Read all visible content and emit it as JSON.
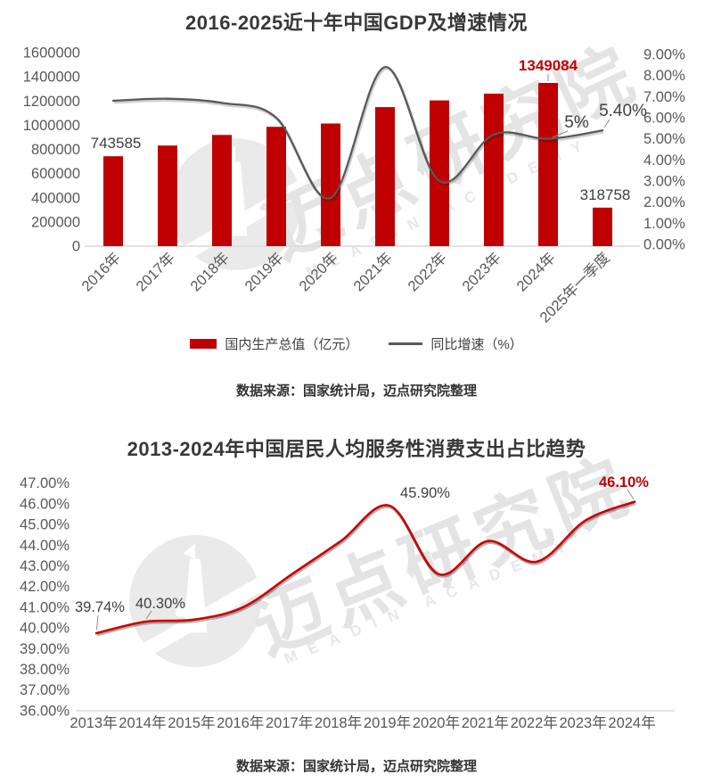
{
  "watermark": {
    "brand": "迈点研究院",
    "subtitle": "MEADIN ACADEMY"
  },
  "colors": {
    "bar_red": "#c00000",
    "growth_line_gray": "#595959",
    "trend_line_red": "#cc0000",
    "emphasis_red": "#c00000",
    "axis_text": "#595959",
    "axis_line": "#d9d9d9",
    "title_text": "#383838"
  },
  "chart_data": [
    {
      "type": "bar+line",
      "title": "2016-2025近十年中国GDP及增速情况",
      "categories": [
        "2016年",
        "2017年",
        "2018年",
        "2019年",
        "2020年",
        "2021年",
        "2022年",
        "2023年",
        "2024年",
        "2025年一季度"
      ],
      "series": [
        {
          "name": "国内生产总值（亿元）",
          "type": "bar",
          "color": "#c00000",
          "axis": "left",
          "values": [
            743585,
            832036,
            919281,
            986515,
            1013567,
            1149237,
            1204724,
            1260582,
            1349084,
            318758
          ]
        },
        {
          "name": "同比增速（%）",
          "type": "line",
          "color": "#595959",
          "axis": "right",
          "values": [
            6.8,
            6.9,
            6.7,
            6.0,
            2.2,
            8.4,
            3.0,
            5.2,
            5.0,
            5.4
          ]
        }
      ],
      "left_axis": {
        "min": 0,
        "max": 1600000,
        "step": 200000
      },
      "right_axis": {
        "min": 0,
        "max": 9,
        "step": 1,
        "suffix": "%",
        "decimals": 2
      },
      "data_labels": [
        {
          "series": 0,
          "index": 0,
          "text": "743585"
        },
        {
          "series": 0,
          "index": 8,
          "text": "1349084",
          "emphasis": true
        },
        {
          "series": 0,
          "index": 9,
          "text": "318758"
        },
        {
          "series": 1,
          "index": 8,
          "text": "5%"
        },
        {
          "series": 1,
          "index": 9,
          "text": "5.40%"
        }
      ],
      "grid": false,
      "legend_position": "bottom",
      "source": "数据来源：国家统计局，迈点研究院整理"
    },
    {
      "type": "line",
      "title": "2013-2024年中国居民人均服务性消费支出占比趋势",
      "categories": [
        "2013年",
        "2014年",
        "2015年",
        "2016年",
        "2017年",
        "2018年",
        "2019年",
        "2020年",
        "2021年",
        "2022年",
        "2023年",
        "2024年"
      ],
      "series": [
        {
          "type": "line",
          "color": "#cc0000",
          "values": [
            39.74,
            40.3,
            40.4,
            41.0,
            42.6,
            44.2,
            45.9,
            42.6,
            44.2,
            43.2,
            45.2,
            46.1
          ]
        }
      ],
      "y_axis": {
        "min": 36,
        "max": 47,
        "step": 1,
        "suffix": "%",
        "decimals": 2
      },
      "data_labels": [
        {
          "series": 0,
          "index": 0,
          "text": "39.74%"
        },
        {
          "series": 0,
          "index": 1,
          "text": "40.30%"
        },
        {
          "series": 0,
          "index": 6,
          "text": "45.90%"
        },
        {
          "series": 0,
          "index": 11,
          "text": "46.10%",
          "emphasis": true
        }
      ],
      "grid": false,
      "legend_position": "none",
      "source": "数据来源：国家统计局，迈点研究院整理"
    }
  ]
}
